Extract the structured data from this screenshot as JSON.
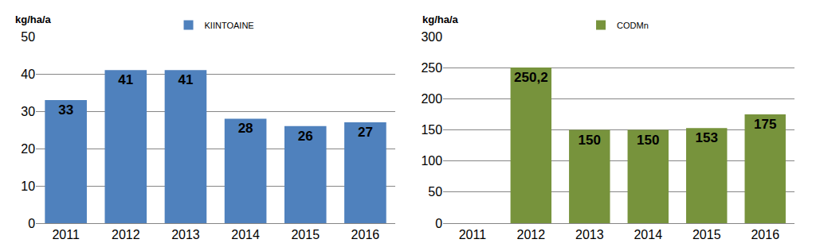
{
  "chart_data": [
    {
      "type": "bar",
      "ylabel": "kg/ha/a",
      "categories": [
        "2011",
        "2012",
        "2013",
        "2014",
        "2015",
        "2016"
      ],
      "series": [
        {
          "name": "KIINTOAINE",
          "color": "#4f81bd",
          "values": [
            33,
            41,
            41,
            28,
            26,
            27
          ]
        }
      ],
      "ylim": [
        0,
        50
      ],
      "yticks": [
        0,
        10,
        20,
        30,
        40,
        50
      ],
      "grid": true,
      "legend": "top",
      "data_labels": true
    },
    {
      "type": "bar",
      "ylabel": "kg/ha/a",
      "categories": [
        "2011",
        "2012",
        "2013",
        "2014",
        "2015",
        "2016"
      ],
      "series": [
        {
          "name": "CODMn",
          "color": "#77933c",
          "values": [
            null,
            250.2,
            150,
            150,
            153,
            175
          ],
          "value_labels": [
            null,
            "250,2",
            "150",
            "150",
            "153",
            "175"
          ]
        }
      ],
      "ylim": [
        0,
        300
      ],
      "yticks": [
        0,
        50,
        100,
        150,
        200,
        250,
        300
      ],
      "grid": true,
      "legend": "top",
      "data_labels": true
    }
  ]
}
